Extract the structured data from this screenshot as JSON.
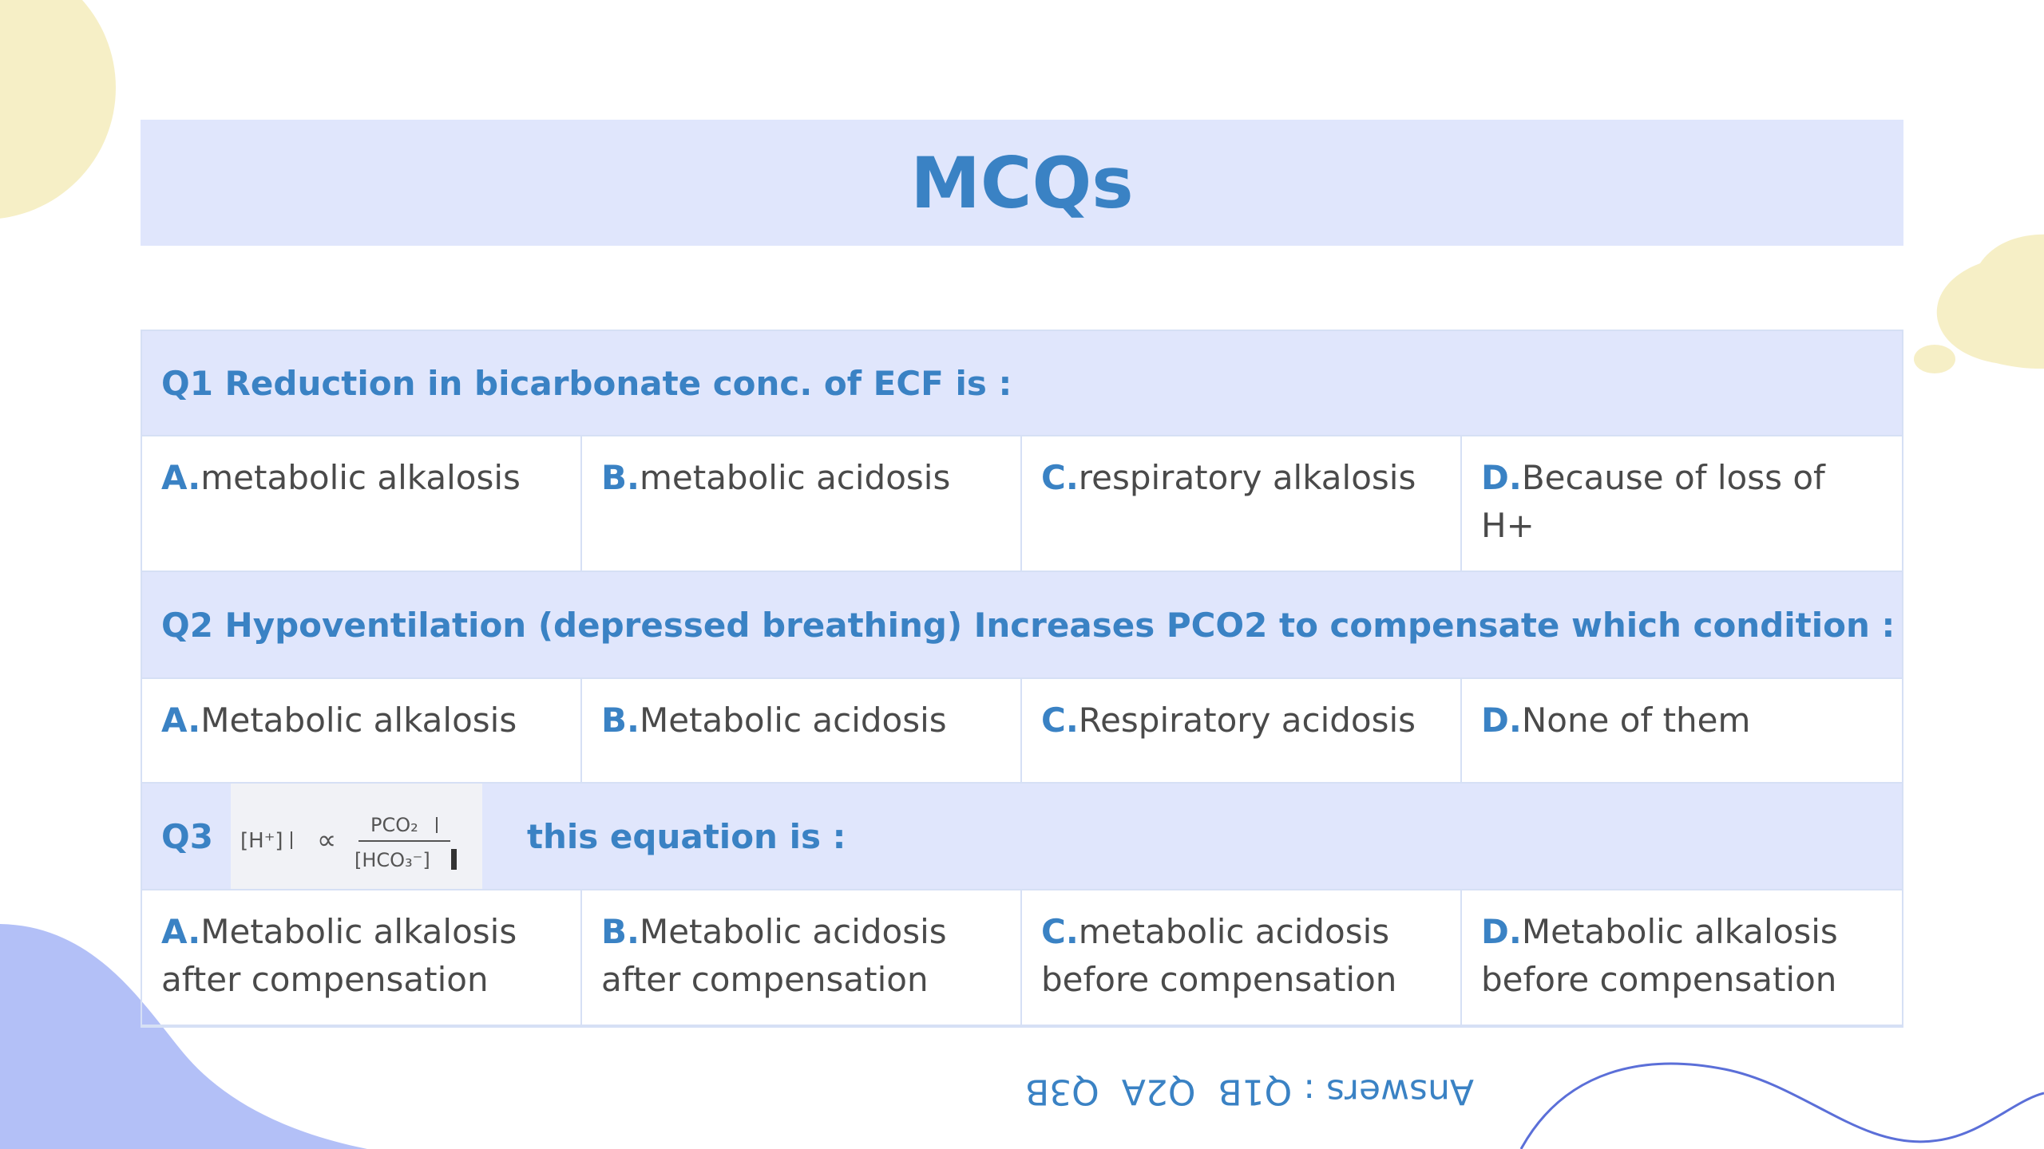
{
  "title": "MCQs",
  "questions": [
    {
      "label": "Q1 Reduction in bicarbonate conc. of ECF is :",
      "options": [
        {
          "letter": "A.",
          "text": "metabolic alkalosis"
        },
        {
          "letter": "B.",
          "text": "metabolic acidosis"
        },
        {
          "letter": "C.",
          "text": "respiratory alkalosis"
        },
        {
          "letter": "D.",
          "text": "Because of loss of H+"
        }
      ]
    },
    {
      "label": "Q2 Hypoventilation (depressed breathing) Increases PCO2 to compensate which condition :",
      "options": [
        {
          "letter": "A.",
          "text": "Metabolic alkalosis"
        },
        {
          "letter": "B.",
          "text": "Metabolic acidosis"
        },
        {
          "letter": "C.",
          "text": "Respiratory acidosis"
        },
        {
          "letter": "D.",
          "text": "None of them"
        }
      ]
    },
    {
      "label": "Q3",
      "equation": {
        "left": "[H⁺]",
        "relation": "∝",
        "numerator": "PCO₂",
        "denominator": "[HCO₃⁻]"
      },
      "suffix": "this  equation is :",
      "options": [
        {
          "letter": "A.",
          "text": "Metabolic alkalosis after compensation"
        },
        {
          "letter": "B.",
          "text": "Metabolic acidosis after compensation"
        },
        {
          "letter": "C.",
          "text": "metabolic acidosis before compensation"
        },
        {
          "letter": "D.",
          "text": "Metabolic alkalosis before compensation"
        }
      ]
    }
  ],
  "answers": "Answers : Q1B  Q2A  Q3B"
}
